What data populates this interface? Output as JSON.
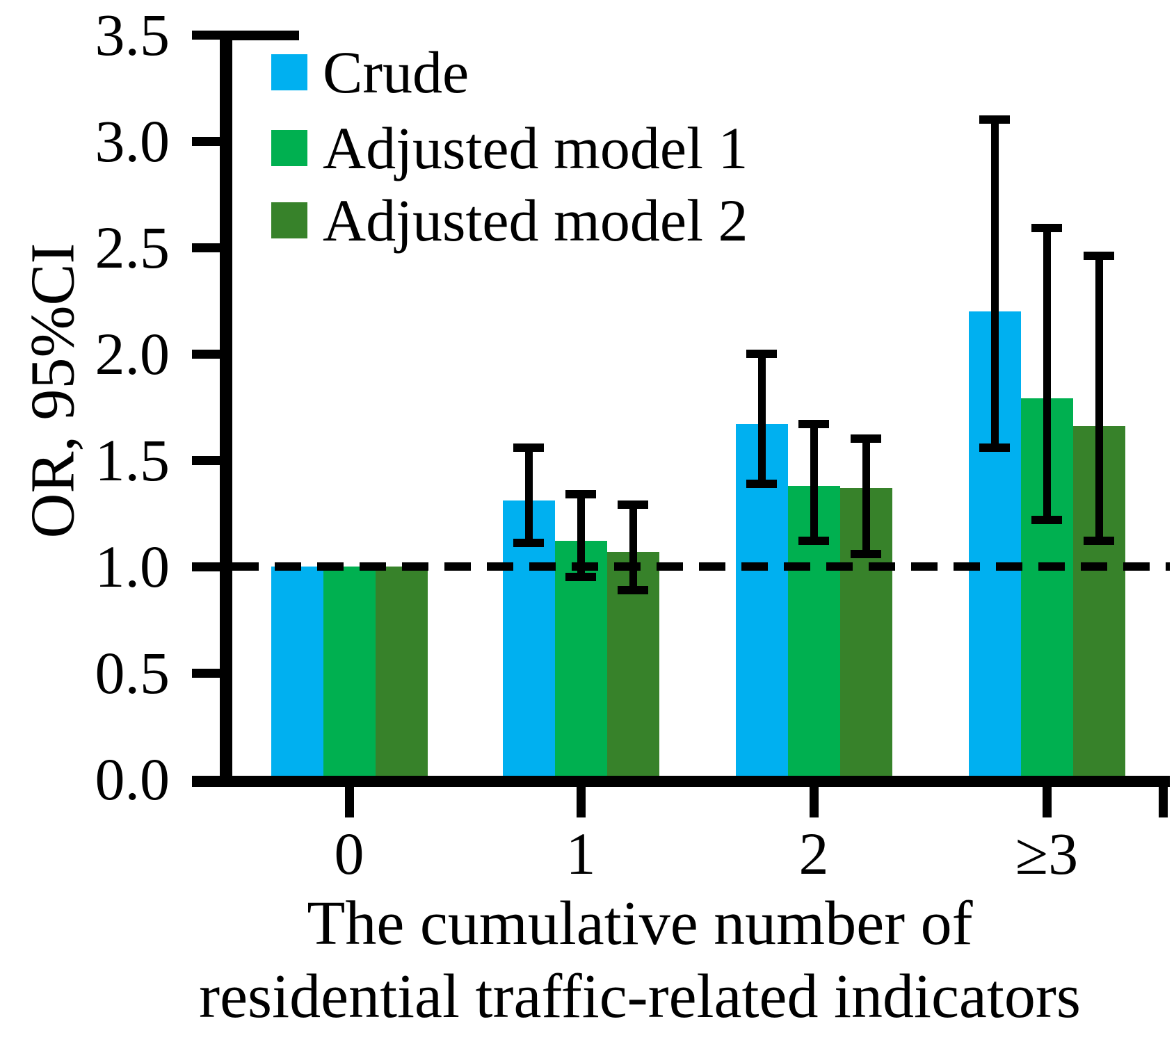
{
  "figure": {
    "y_axis": {
      "label": "OR, 95%CI",
      "tick_labels": [
        "0.0",
        "0.5",
        "1.0",
        "1.5",
        "2.0",
        "2.5",
        "3.0",
        "3.5"
      ],
      "tick_values": [
        0.0,
        0.5,
        1.0,
        1.5,
        2.0,
        2.5,
        3.0,
        3.5
      ]
    },
    "x_axis": {
      "title_lines": [
        "The cumulative number of",
        "residential traffic-related indicators"
      ]
    },
    "reference_line": {
      "value": 1.0,
      "style": "dashed",
      "color": "#000000"
    },
    "colors": {
      "axis": "#000000",
      "background": "#ffffff"
    }
  },
  "chart_data": {
    "type": "bar",
    "title": "",
    "categories": [
      "0",
      "1",
      "2",
      "≥3"
    ],
    "xlabel": "The cumulative number of residential traffic-related indicators",
    "ylabel": "OR, 95%CI",
    "ylim": [
      0,
      3.5
    ],
    "ytick_step": 0.5,
    "grid": false,
    "legend_position": "top-left",
    "reference_line_y": 1.0,
    "error_bars": "95% CI",
    "series": [
      {
        "name": "Crude",
        "color": "#00B0F0",
        "values": [
          1.0,
          1.31,
          1.67,
          2.2
        ],
        "ci_low": [
          null,
          1.11,
          1.39,
          1.56
        ],
        "ci_high": [
          null,
          1.56,
          2.0,
          3.1
        ]
      },
      {
        "name": "Adjusted model 1",
        "color": "#00B050",
        "values": [
          1.0,
          1.12,
          1.38,
          1.79
        ],
        "ci_low": [
          null,
          0.95,
          1.12,
          1.22
        ],
        "ci_high": [
          null,
          1.34,
          1.67,
          2.59
        ]
      },
      {
        "name": "Adjusted model 2",
        "color": "#37822A",
        "values": [
          1.0,
          1.07,
          1.37,
          1.66
        ],
        "ci_low": [
          null,
          0.89,
          1.06,
          1.12
        ],
        "ci_high": [
          null,
          1.29,
          1.6,
          2.46
        ]
      }
    ]
  }
}
